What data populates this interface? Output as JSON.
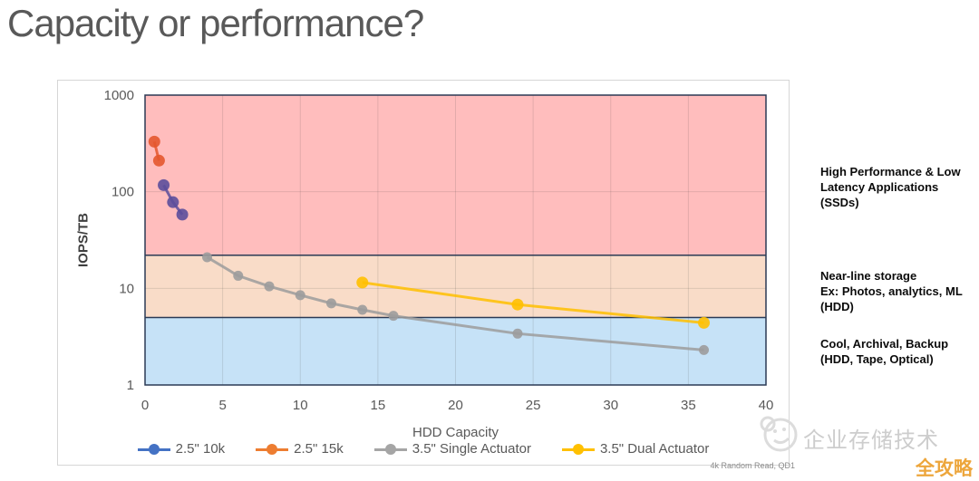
{
  "page": {
    "title": "Capacity or performance?"
  },
  "chart_data": {
    "type": "line",
    "title": "",
    "xlabel": "HDD Capacity",
    "ylabel": "IOPS/TB",
    "x_ticks": [
      0,
      5,
      10,
      15,
      20,
      25,
      30,
      35,
      40
    ],
    "y_ticks": [
      1,
      10,
      100,
      1000
    ],
    "xlim": [
      0,
      40
    ],
    "ylim": [
      1,
      1000
    ],
    "y_scale": "log",
    "grid": true,
    "legend_position": "bottom",
    "bands": [
      {
        "zone": "high-performance-ssd",
        "from": 22,
        "to": 1000,
        "color": "#FFBDBD"
      },
      {
        "zone": "near-line-hdd",
        "from": 5,
        "to": 22,
        "color": "#F9DCC8"
      },
      {
        "zone": "cool-archival",
        "from": 1,
        "to": 5,
        "color": "#C6E2F7"
      }
    ],
    "band_boundary_color": "#2b3a55",
    "series": [
      {
        "name": "2.5\" 10k",
        "color": "#5C4E9B",
        "legend_color": "#4472C4",
        "marker_r": 6.5,
        "points": [
          [
            1.2,
            117
          ],
          [
            1.8,
            78
          ],
          [
            2.4,
            58
          ]
        ]
      },
      {
        "name": "2.5\" 15k",
        "color": "#E4572E",
        "legend_color": "#ED7D31",
        "marker_r": 6.5,
        "points": [
          [
            0.6,
            330
          ],
          [
            0.9,
            210
          ]
        ]
      },
      {
        "name": "3.5\" Single Actuator",
        "color": "#9C9C9C",
        "legend_color": "#A5A5A5",
        "marker_r": 5.5,
        "points": [
          [
            4,
            21
          ],
          [
            6,
            13.5
          ],
          [
            8,
            10.5
          ],
          [
            10,
            8.5
          ],
          [
            12,
            7
          ],
          [
            14,
            6
          ],
          [
            16,
            5.2
          ],
          [
            24,
            3.4
          ],
          [
            36,
            2.3
          ]
        ]
      },
      {
        "name": "3.5\" Dual Actuator",
        "color": "#FFC000",
        "legend_color": "#FFC000",
        "marker_r": 6.5,
        "points": [
          [
            14,
            11.5
          ],
          [
            24,
            6.8
          ],
          [
            36,
            4.4
          ]
        ]
      }
    ],
    "caption": "4k Random Read, QD1"
  },
  "annotations": [
    {
      "lines": [
        "High Performance & Low",
        "Latency Applications",
        "(SSDs)"
      ]
    },
    {
      "lines": [
        "Near-line storage",
        "Ex: Photos, analytics, ML",
        "(HDD)"
      ]
    },
    {
      "lines": [
        "Cool, Archival, Backup",
        "(HDD, Tape, Optical)"
      ]
    }
  ],
  "watermark": {
    "text": "企业存储技术",
    "badge": "全攻略"
  }
}
